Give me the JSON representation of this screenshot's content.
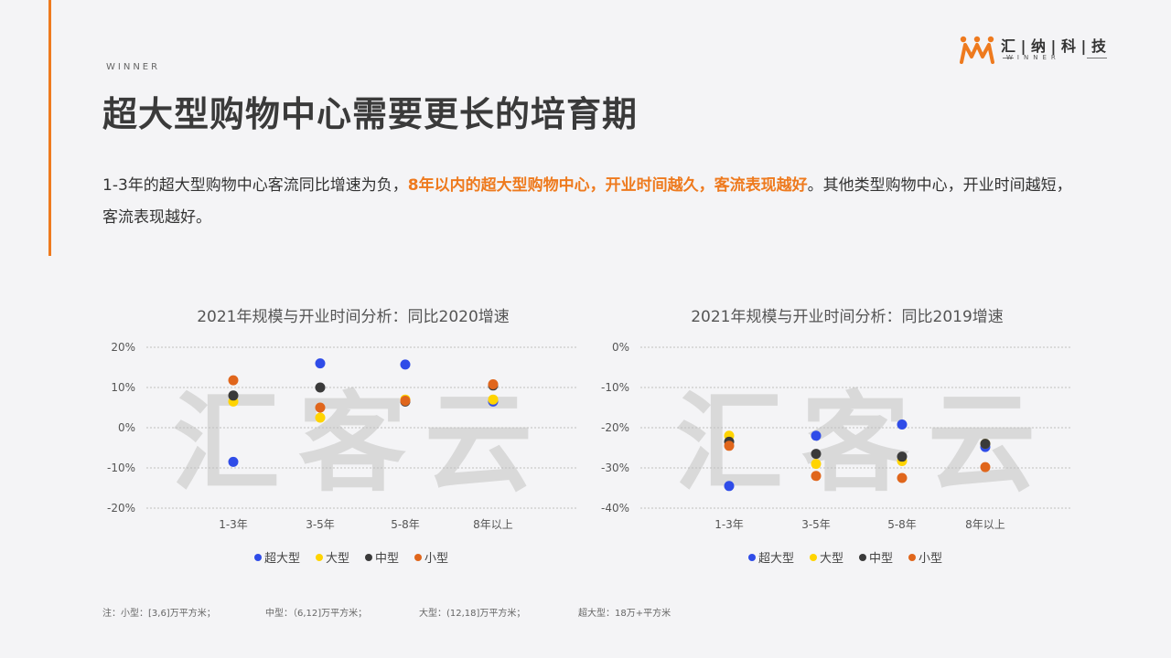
{
  "header": {
    "brand_small": "WINNER",
    "title": "超大型购物中心需要更长的培育期",
    "logo_name": "汇 | 纳 | 科 | 技",
    "logo_sub": "WINNER"
  },
  "summary": {
    "part1": "1-3年的超大型购物中心客流同比增速为负，",
    "highlight": "8年以内的超大型购物中心，开业时间越久，客流表现越好",
    "part2": "。其他类型购物中心，开业时间越短，客流表现越好。"
  },
  "watermark": "汇客云",
  "colors": {
    "accent": "#ee7a1e",
    "超大型": "#2f4ce8",
    "大型": "#ffd400",
    "中型": "#3a3a3a",
    "小型": "#e0661c"
  },
  "chart_data": [
    {
      "type": "scatter",
      "title": "2021年规模与开业时间分析：同比2020增速",
      "categories": [
        "1-3年",
        "3-5年",
        "5-8年",
        "8年以上"
      ],
      "ylim": [
        -20,
        20
      ],
      "yticks": [
        20,
        10,
        0,
        -10,
        -20
      ],
      "ytick_labels": [
        "20%",
        "10%",
        "0%",
        "-10%",
        "-20%"
      ],
      "grid": true,
      "legend_position": "bottom",
      "series": [
        {
          "name": "超大型",
          "values": [
            -8.5,
            16,
            15.7,
            6.5
          ]
        },
        {
          "name": "大型",
          "values": [
            6.5,
            2.5,
            7,
            7
          ]
        },
        {
          "name": "中型",
          "values": [
            8,
            10,
            6.5,
            10.5
          ]
        },
        {
          "name": "小型",
          "values": [
            11.8,
            5,
            6.7,
            10.8
          ]
        }
      ]
    },
    {
      "type": "scatter",
      "title": "2021年规模与开业时间分析：同比2019增速",
      "categories": [
        "1-3年",
        "3-5年",
        "5-8年",
        "8年以上"
      ],
      "ylim": [
        -40,
        0
      ],
      "yticks": [
        0,
        -10,
        -20,
        -30,
        -40
      ],
      "ytick_labels": [
        "0%",
        "-10%",
        "-20%",
        "-30%",
        "-40%"
      ],
      "grid": true,
      "legend_position": "bottom",
      "series": [
        {
          "name": "超大型",
          "values": [
            -34.5,
            -22,
            -19.2,
            -24.8
          ]
        },
        {
          "name": "大型",
          "values": [
            -22,
            -29,
            -28.3,
            -24
          ]
        },
        {
          "name": "中型",
          "values": [
            -23.5,
            -26.5,
            -27.2,
            -24
          ]
        },
        {
          "name": "小型",
          "values": [
            -24.5,
            -32,
            -32.5,
            -29.8
          ]
        }
      ]
    }
  ],
  "notes": [
    "注：小型：[3,6]万平方米；",
    "中型：（6,12]万平方米；",
    "大型：(12,18]万平方米；",
    "超大型：18万+平方米"
  ]
}
